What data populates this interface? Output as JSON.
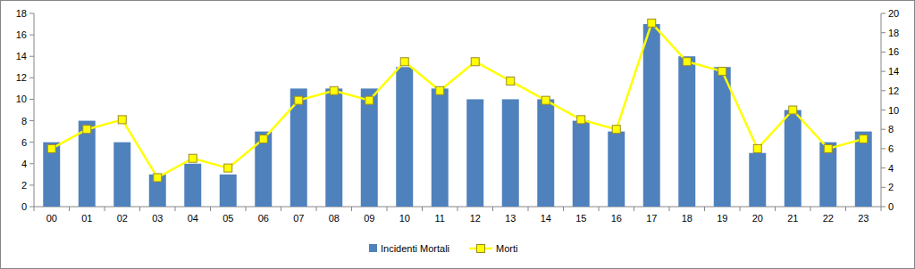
{
  "chart_data": {
    "type": "bar",
    "categories": [
      "00",
      "01",
      "02",
      "03",
      "04",
      "05",
      "06",
      "07",
      "08",
      "09",
      "10",
      "11",
      "12",
      "13",
      "14",
      "15",
      "16",
      "17",
      "18",
      "19",
      "20",
      "21",
      "22",
      "23"
    ],
    "series": [
      {
        "name": "Incidenti Mortali",
        "type": "bar",
        "color": "#4f81bd",
        "values": [
          6,
          8,
          6,
          3,
          4,
          3,
          7,
          11,
          11,
          11,
          13,
          11,
          10,
          10,
          10,
          8,
          7,
          17,
          14,
          13,
          5,
          9,
          6,
          7
        ]
      },
      {
        "name": "Morti",
        "type": "line",
        "color": "#ffff00",
        "marker": "square",
        "axis": "y2",
        "values": [
          6,
          8,
          9,
          3,
          5,
          4,
          7,
          11,
          12,
          11,
          15,
          12,
          15,
          13,
          11,
          9,
          8,
          19,
          15,
          14,
          6,
          10,
          6,
          7
        ]
      }
    ],
    "ylim": [
      0,
      18
    ],
    "yticks": [
      0,
      2,
      4,
      6,
      8,
      10,
      12,
      14,
      16,
      18
    ],
    "y2lim": [
      0,
      20
    ],
    "y2ticks": [
      0,
      2,
      4,
      6,
      8,
      10,
      12,
      14,
      16,
      18,
      20
    ],
    "grid": false,
    "legend": "bottom"
  }
}
